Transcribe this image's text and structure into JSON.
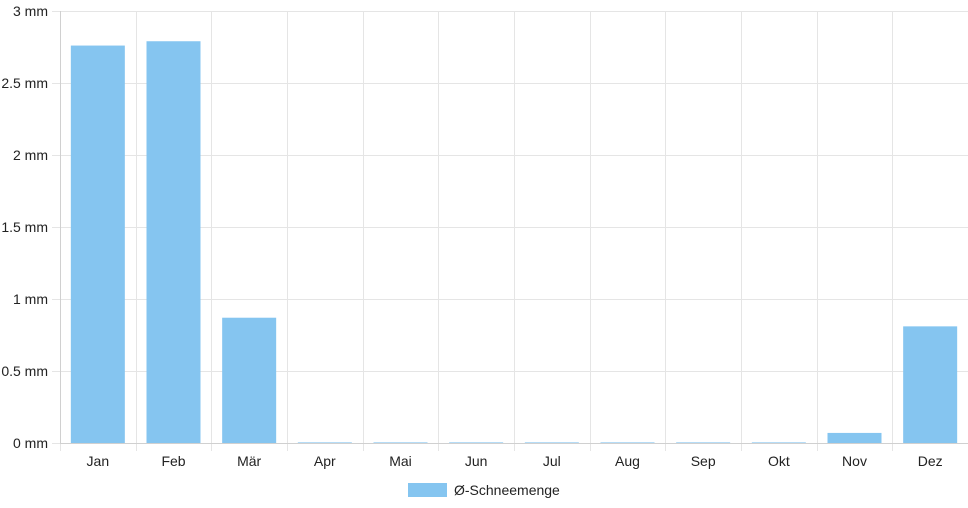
{
  "chart_data": {
    "type": "bar",
    "title": "",
    "xlabel": "",
    "ylabel": "",
    "categories": [
      "Jan",
      "Feb",
      "Mär",
      "Apr",
      "Mai",
      "Jun",
      "Jul",
      "Aug",
      "Sep",
      "Okt",
      "Nov",
      "Dez"
    ],
    "series": [
      {
        "name": "Ø-Schneemenge",
        "values": [
          2.76,
          2.79,
          0.87,
          0.0,
          0.0,
          0.0,
          0.0,
          0.0,
          0.0,
          0.0,
          0.07,
          0.81
        ],
        "color": "#85c5f0"
      }
    ],
    "ylim": [
      0,
      3
    ],
    "y_ticks": [
      0,
      0.5,
      1,
      1.5,
      2,
      2.5,
      3
    ],
    "y_tick_labels": [
      "0 mm",
      "0.5 mm",
      "1 mm",
      "1.5 mm",
      "2 mm",
      "2.5 mm",
      "3 mm"
    ],
    "grid": true,
    "legend_position": "bottom-center"
  },
  "colors": {
    "bar": "#85c5f0",
    "grid": "#e5e5e5",
    "axis": "#d0d0d0",
    "text": "#222222"
  }
}
